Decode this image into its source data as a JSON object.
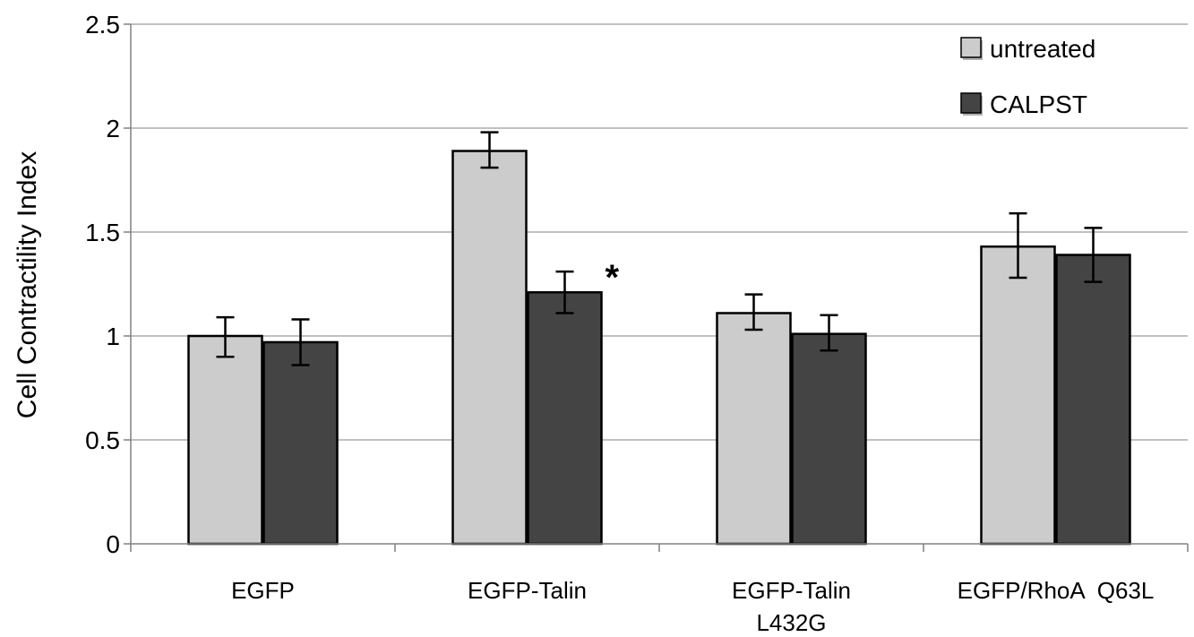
{
  "chart_data": {
    "type": "bar",
    "title": "",
    "xlabel": "",
    "ylabel": "Cell Contractility Index",
    "ylim": [
      0,
      2.5
    ],
    "yticks": [
      "0",
      "0.5",
      "1",
      "1.5",
      "2",
      "2.5"
    ],
    "grid": true,
    "legend_position": "top-right",
    "categories": [
      [
        "EGFP"
      ],
      [
        "EGFP-Talin"
      ],
      [
        "EGFP-Talin",
        "L432G"
      ],
      [
        "EGFP/RhoA  Q63L"
      ]
    ],
    "series": [
      {
        "name": "untreated",
        "color": "#cccccc",
        "values": [
          1.0,
          1.89,
          1.11,
          1.43
        ],
        "err_low": [
          0.9,
          1.81,
          1.03,
          1.28
        ],
        "err_high": [
          1.09,
          1.98,
          1.2,
          1.59
        ]
      },
      {
        "name": "CALPST",
        "color": "#444444",
        "values": [
          0.97,
          1.21,
          1.01,
          1.39
        ],
        "err_low": [
          0.86,
          1.11,
          0.93,
          1.26
        ],
        "err_high": [
          1.08,
          1.31,
          1.1,
          1.52
        ]
      }
    ],
    "annotations": [
      {
        "text": "*",
        "category_index": 1,
        "series_index": 1,
        "y": 1.31
      }
    ]
  }
}
